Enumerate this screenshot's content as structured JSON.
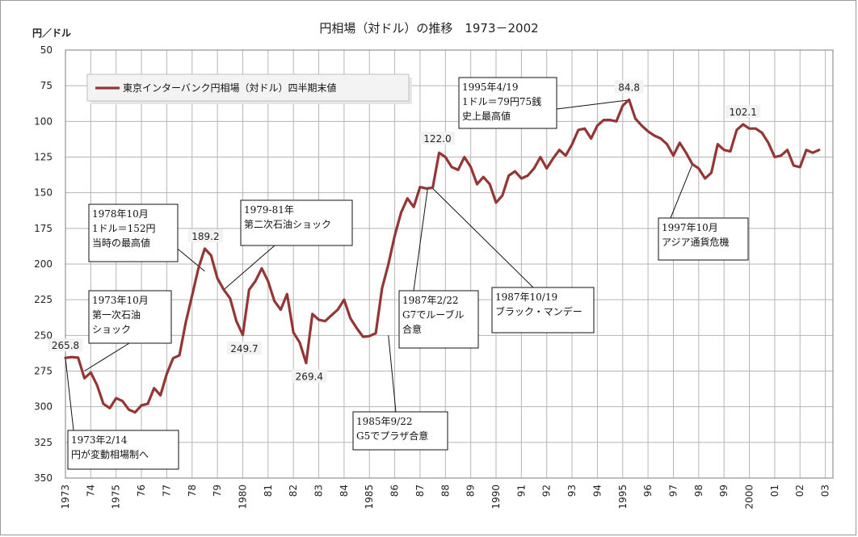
{
  "chart_data": {
    "type": "line",
    "title": "円相場（対ドル）の推移　1973－2002",
    "ylabel": "円／ドル",
    "xlabel": "",
    "y_inverted": true,
    "ylim": [
      50,
      350
    ],
    "yticks": [
      50,
      75,
      100,
      125,
      150,
      175,
      200,
      225,
      250,
      275,
      300,
      325,
      350
    ],
    "xlim": [
      1973,
      2003.3
    ],
    "xticks": [
      {
        "x": 1973,
        "label": "1973"
      },
      {
        "x": 1974,
        "label": "74"
      },
      {
        "x": 1975,
        "label": "1975"
      },
      {
        "x": 1976,
        "label": "76"
      },
      {
        "x": 1977,
        "label": "77"
      },
      {
        "x": 1978,
        "label": "78"
      },
      {
        "x": 1979,
        "label": "79"
      },
      {
        "x": 1980,
        "label": "1980"
      },
      {
        "x": 1981,
        "label": "81"
      },
      {
        "x": 1982,
        "label": "82"
      },
      {
        "x": 1983,
        "label": "83"
      },
      {
        "x": 1984,
        "label": "84"
      },
      {
        "x": 1985,
        "label": "1985"
      },
      {
        "x": 1986,
        "label": "86"
      },
      {
        "x": 1987,
        "label": "87"
      },
      {
        "x": 1988,
        "label": "88"
      },
      {
        "x": 1989,
        "label": "89"
      },
      {
        "x": 1990,
        "label": "1990"
      },
      {
        "x": 1991,
        "label": "91"
      },
      {
        "x": 1992,
        "label": "92"
      },
      {
        "x": 1993,
        "label": "93"
      },
      {
        "x": 1994,
        "label": "94"
      },
      {
        "x": 1995,
        "label": "1995"
      },
      {
        "x": 1996,
        "label": "96"
      },
      {
        "x": 1997,
        "label": "97"
      },
      {
        "x": 1998,
        "label": "98"
      },
      {
        "x": 1999,
        "label": "99"
      },
      {
        "x": 2000,
        "label": "2000"
      },
      {
        "x": 2001,
        "label": "01"
      },
      {
        "x": 2002,
        "label": "02"
      },
      {
        "x": 2003,
        "label": "03"
      }
    ],
    "grid": true,
    "legend_position": "top-left",
    "series": [
      {
        "name": "東京インターバンク円相場（対ドル）四半期末値",
        "color": "#943634",
        "x": [
          1973.0,
          1973.25,
          1973.5,
          1973.75,
          1974.0,
          1974.25,
          1974.5,
          1974.75,
          1975.0,
          1975.25,
          1975.5,
          1975.75,
          1976.0,
          1976.25,
          1976.5,
          1976.75,
          1977.0,
          1977.25,
          1977.5,
          1977.75,
          1978.0,
          1978.25,
          1978.5,
          1978.75,
          1979.0,
          1979.25,
          1979.5,
          1979.75,
          1980.0,
          1980.25,
          1980.5,
          1980.75,
          1981.0,
          1981.25,
          1981.5,
          1981.75,
          1982.0,
          1982.25,
          1982.5,
          1982.75,
          1983.0,
          1983.25,
          1983.5,
          1983.75,
          1984.0,
          1984.25,
          1984.5,
          1984.75,
          1985.0,
          1985.25,
          1985.5,
          1985.75,
          1986.0,
          1986.25,
          1986.5,
          1986.75,
          1987.0,
          1987.25,
          1987.5,
          1987.75,
          1988.0,
          1988.25,
          1988.5,
          1988.75,
          1989.0,
          1989.25,
          1989.5,
          1989.75,
          1990.0,
          1990.25,
          1990.5,
          1990.75,
          1991.0,
          1991.25,
          1991.5,
          1991.75,
          1992.0,
          1992.25,
          1992.5,
          1992.75,
          1993.0,
          1993.25,
          1993.5,
          1993.75,
          1994.0,
          1994.25,
          1994.5,
          1994.75,
          1995.0,
          1995.25,
          1995.5,
          1995.75,
          1996.0,
          1996.25,
          1996.5,
          1996.75,
          1997.0,
          1997.25,
          1997.5,
          1997.75,
          1998.0,
          1998.25,
          1998.5,
          1998.75,
          1999.0,
          1999.25,
          1999.5,
          1999.75,
          2000.0,
          2000.25,
          2000.5,
          2000.75,
          2001.0,
          2001.25,
          2001.5,
          2001.75,
          2002.0,
          2002.25,
          2002.5,
          2002.75
        ],
        "y": [
          265.8,
          265.2,
          265.6,
          280.0,
          276.0,
          285.0,
          298.0,
          301.0,
          294.0,
          296.0,
          302.0,
          304.0,
          299.0,
          298.0,
          287.0,
          292.0,
          277.0,
          266.0,
          264.0,
          241.0,
          222.0,
          203.0,
          189.2,
          194.0,
          210.0,
          218.0,
          224.0,
          240.0,
          249.7,
          218.0,
          212.0,
          203.0,
          212.0,
          226.0,
          232.0,
          221.0,
          248.0,
          255.0,
          269.4,
          235.0,
          239.0,
          240.0,
          236.0,
          232.0,
          225.0,
          238.0,
          245.0,
          251.0,
          250.5,
          248.5,
          217.0,
          200.0,
          180.0,
          164.0,
          154.0,
          160.0,
          146.0,
          147.0,
          146.5,
          122.0,
          125.0,
          132.0,
          134.0,
          125.0,
          132.0,
          144.0,
          139.0,
          144.0,
          157.0,
          152.0,
          138.0,
          135.0,
          140.0,
          138.0,
          133.0,
          125.0,
          133.0,
          126.0,
          120.0,
          124.0,
          116.0,
          106.0,
          105.0,
          112.0,
          103.0,
          99.0,
          99.0,
          100.0,
          89.0,
          84.8,
          98.0,
          103.0,
          107.0,
          110.0,
          112.0,
          116.0,
          124.0,
          115.0,
          122.0,
          130.0,
          133.0,
          140.0,
          136.0,
          116.0,
          120.0,
          121.0,
          106.0,
          102.1,
          105.0,
          105.0,
          108.0,
          115.0,
          125.0,
          124.0,
          120.0,
          131.0,
          132.0,
          120.0,
          122.0,
          120.0
        ]
      }
    ],
    "data_labels": [
      {
        "x": 1973.0,
        "y": 265.8,
        "text": "265.8"
      },
      {
        "x": 1978.5,
        "y": 189.2,
        "text": "189.2"
      },
      {
        "x": 1980.0,
        "y": 249.7,
        "text": "249.7"
      },
      {
        "x": 1982.5,
        "y": 269.4,
        "text": "269.4"
      },
      {
        "x": 1987.75,
        "y": 122.0,
        "text": "122.0"
      },
      {
        "x": 1995.25,
        "y": 84.8,
        "text": "84.8"
      },
      {
        "x": 1999.75,
        "y": 102.1,
        "text": "102.1"
      }
    ],
    "annotations": [
      {
        "lines": [
          "1973年2/14",
          "円が変動相場制へ"
        ],
        "target_x": 1973.0,
        "target_y": 265.8
      },
      {
        "lines": [
          "1973年10月",
          "第一次石油",
          "ショック"
        ],
        "target_x": 1973.75,
        "target_y": 275.0
      },
      {
        "lines": [
          "1978年10月",
          "1ドル＝152円",
          "当時の最高値"
        ],
        "target_x": 1978.5,
        "target_y": 205.0
      },
      {
        "lines": [
          "1979-81年",
          "第二次石油ショック"
        ],
        "target_x": 1979.25,
        "target_y": 218.0
      },
      {
        "lines": [
          "1985年9/22",
          "G5でプラザ合意"
        ],
        "target_x": 1985.75,
        "target_y": 250.0
      },
      {
        "lines": [
          "1987年2/22",
          "G7でルーブル",
          "合意"
        ],
        "target_x": 1987.3,
        "target_y": 147.0
      },
      {
        "lines": [
          "1987年10/19",
          "ブラック・マンデー"
        ],
        "target_x": 1987.5,
        "target_y": 147.0
      },
      {
        "lines": [
          "1995年4/19",
          "1ドル＝79円75銭",
          "史上最高値"
        ],
        "target_x": 1995.25,
        "target_y": 85.0
      },
      {
        "lines": [
          "1997年10月",
          "アジア通貨危機"
        ],
        "target_x": 1997.75,
        "target_y": 130.0
      }
    ]
  }
}
